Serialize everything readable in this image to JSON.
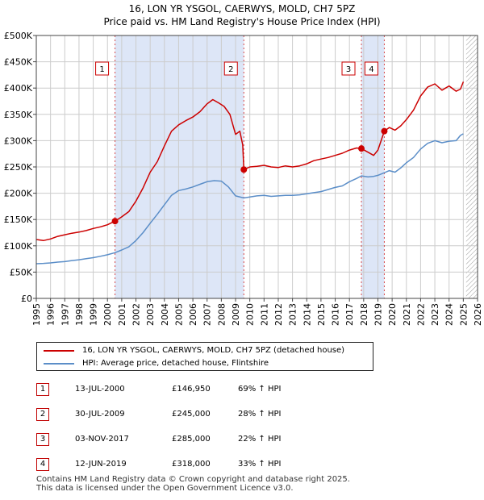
{
  "title_line1": "16, LON YR YSGOL, CAERWYS, MOLD, CH7 5PZ",
  "title_line2": "Price paid vs. HM Land Registry's House Price Index (HPI)",
  "legend": {
    "property": "16, LON YR YSGOL, CAERWYS, MOLD, CH7 5PZ (detached house)",
    "hpi": "HPI: Average price, detached house, Flintshire"
  },
  "sales": [
    {
      "num": "1",
      "date": "13-JUL-2000",
      "price": "£146,950",
      "hpi": "69% ↑ HPI"
    },
    {
      "num": "2",
      "date": "30-JUL-2009",
      "price": "£245,000",
      "hpi": "28% ↑ HPI"
    },
    {
      "num": "3",
      "date": "03-NOV-2017",
      "price": "£285,000",
      "hpi": "22% ↑ HPI"
    },
    {
      "num": "4",
      "date": "12-JUN-2019",
      "price": "£318,000",
      "hpi": "33% ↑ HPI"
    }
  ],
  "footer_line1": "Contains HM Land Registry data © Crown copyright and database right 2025.",
  "footer_line2": "This data is licensed under the Open Government Licence v3.0.",
  "colors": {
    "property": "#cc0000",
    "hpi": "#5b8ec8",
    "shade": "#dde6f7",
    "grid": "#cccccc"
  },
  "chart_data": {
    "type": "line",
    "title": "16, LON YR YSGOL, CAERWYS, MOLD, CH7 5PZ",
    "subtitle": "Price paid vs. HM Land Registry's House Price Index (HPI)",
    "xlim": [
      1995,
      2026
    ],
    "ylim": [
      0,
      500000
    ],
    "y_ticks": [
      0,
      50000,
      100000,
      150000,
      200000,
      250000,
      300000,
      350000,
      400000,
      450000,
      500000
    ],
    "y_tick_labels": [
      "£0",
      "£50K",
      "£100K",
      "£150K",
      "£200K",
      "£250K",
      "£300K",
      "£350K",
      "£400K",
      "£450K",
      "£500K"
    ],
    "x_ticks": [
      1995,
      1996,
      1997,
      1998,
      1999,
      2000,
      2001,
      2002,
      2003,
      2004,
      2005,
      2006,
      2007,
      2008,
      2009,
      2010,
      2011,
      2012,
      2013,
      2014,
      2015,
      2016,
      2017,
      2018,
      2019,
      2020,
      2021,
      2022,
      2023,
      2024,
      2025,
      2026
    ],
    "x_tick_labels": [
      "1995",
      "1996",
      "1997",
      "1998",
      "1999",
      "2000",
      "2001",
      "2002",
      "2003",
      "2004",
      "2005",
      "2006",
      "2007",
      "2008",
      "2009",
      "2010",
      "2011",
      "2012",
      "2013",
      "2014",
      "2015",
      "2016",
      "2017",
      "2018",
      "2019",
      "2020",
      "2021",
      "2022",
      "2023",
      "2024",
      "2025",
      "2026"
    ],
    "grid": true,
    "legend_position": "bottom",
    "shaded_ranges": [
      [
        2000.53,
        2009.58
      ],
      [
        2017.84,
        2019.45
      ]
    ],
    "future_hatch_from": 2025.2,
    "series": [
      {
        "name": "16, LON YR YSGOL, CAERWYS, MOLD, CH7 5PZ (detached house)",
        "x": [
          1995.0,
          1995.5,
          1996.0,
          1996.5,
          1997.0,
          1997.5,
          1998.0,
          1998.5,
          1999.0,
          1999.5,
          2000.0,
          2000.53,
          2001.0,
          2001.5,
          2002.0,
          2002.5,
          2003.0,
          2003.5,
          2004.0,
          2004.5,
          2005.0,
          2005.5,
          2006.0,
          2006.5,
          2007.0,
          2007.4,
          2007.8,
          2008.2,
          2008.6,
          2009.0,
          2009.3,
          2009.5,
          2009.58,
          2010.0,
          2010.5,
          2011.0,
          2011.5,
          2012.0,
          2012.5,
          2013.0,
          2013.5,
          2014.0,
          2014.5,
          2015.0,
          2015.5,
          2016.0,
          2016.5,
          2017.0,
          2017.5,
          2017.84,
          2018.3,
          2018.7,
          2019.0,
          2019.45,
          2019.8,
          2020.2,
          2020.6,
          2021.0,
          2021.5,
          2022.0,
          2022.5,
          2023.0,
          2023.5,
          2024.0,
          2024.5,
          2024.8,
          2025.0
        ],
        "values": [
          112000,
          110000,
          113000,
          118000,
          121000,
          124000,
          126000,
          129000,
          133000,
          136000,
          140000,
          146950,
          155000,
          165000,
          185000,
          210000,
          240000,
          260000,
          290000,
          318000,
          330000,
          338000,
          345000,
          355000,
          370000,
          378000,
          372000,
          365000,
          350000,
          312000,
          318000,
          292000,
          245000,
          250000,
          251000,
          253000,
          250000,
          249000,
          252000,
          250000,
          252000,
          256000,
          262000,
          265000,
          268000,
          272000,
          276000,
          282000,
          286000,
          285000,
          278000,
          272000,
          282000,
          318000,
          325000,
          320000,
          328000,
          340000,
          358000,
          385000,
          402000,
          408000,
          396000,
          404000,
          394000,
          398000,
          412000
        ]
      },
      {
        "name": "HPI: Average price, detached house, Flintshire",
        "x": [
          1995.0,
          1995.5,
          1996.0,
          1996.5,
          1997.0,
          1997.5,
          1998.0,
          1998.5,
          1999.0,
          1999.5,
          2000.0,
          2000.53,
          2001.0,
          2001.5,
          2002.0,
          2002.5,
          2003.0,
          2003.5,
          2004.0,
          2004.5,
          2005.0,
          2005.5,
          2006.0,
          2006.5,
          2007.0,
          2007.5,
          2008.0,
          2008.5,
          2009.0,
          2009.58,
          2010.0,
          2010.5,
          2011.0,
          2011.5,
          2012.0,
          2012.5,
          2013.0,
          2013.5,
          2014.0,
          2014.5,
          2015.0,
          2015.5,
          2016.0,
          2016.5,
          2017.0,
          2017.5,
          2017.84,
          2018.3,
          2018.7,
          2019.0,
          2019.45,
          2019.8,
          2020.2,
          2020.6,
          2021.0,
          2021.5,
          2022.0,
          2022.5,
          2023.0,
          2023.5,
          2024.0,
          2024.5,
          2024.8,
          2025.0
        ],
        "values": [
          66000,
          66500,
          67500,
          69000,
          70000,
          72000,
          73500,
          75500,
          77500,
          80000,
          83000,
          87000,
          92000,
          98000,
          110000,
          125000,
          143000,
          160000,
          178000,
          196000,
          205000,
          208000,
          212000,
          217000,
          222000,
          224000,
          223000,
          212000,
          195000,
          191000,
          193000,
          195000,
          196000,
          194000,
          195000,
          196000,
          196000,
          197000,
          199000,
          201000,
          203000,
          207000,
          211000,
          214000,
          222000,
          228000,
          233000,
          231000,
          232000,
          234000,
          239000,
          243000,
          240000,
          248000,
          258000,
          268000,
          284000,
          295000,
          300000,
          296000,
          299000,
          300000,
          310000,
          313000
        ]
      }
    ],
    "sale_markers": [
      {
        "label": "1",
        "x": 2000.53,
        "value": 146950
      },
      {
        "label": "2",
        "x": 2009.58,
        "value": 245000
      },
      {
        "label": "3",
        "x": 2017.84,
        "value": 285000
      },
      {
        "label": "4",
        "x": 2019.45,
        "value": 318000
      }
    ]
  }
}
